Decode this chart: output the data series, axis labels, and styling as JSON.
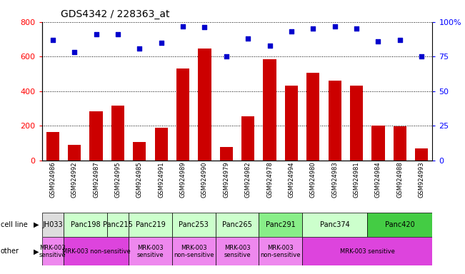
{
  "title": "GDS4342 / 228363_at",
  "gsm_labels": [
    "GSM924986",
    "GSM924992",
    "GSM924987",
    "GSM924995",
    "GSM924985",
    "GSM924991",
    "GSM924989",
    "GSM924990",
    "GSM924979",
    "GSM924982",
    "GSM924978",
    "GSM924994",
    "GSM924980",
    "GSM924983",
    "GSM924981",
    "GSM924984",
    "GSM924988",
    "GSM924993"
  ],
  "counts": [
    165,
    90,
    285,
    315,
    105,
    190,
    530,
    645,
    75,
    255,
    585,
    430,
    505,
    460,
    430,
    200,
    195,
    70
  ],
  "percentiles": [
    87,
    78,
    91,
    91,
    81,
    85,
    97,
    96,
    75,
    88,
    83,
    93,
    95,
    97,
    95,
    86,
    87,
    75
  ],
  "ylim_left": [
    0,
    800
  ],
  "ylim_right": [
    0,
    100
  ],
  "yticks_left": [
    0,
    200,
    400,
    600,
    800
  ],
  "yticks_right": [
    0,
    25,
    50,
    75,
    100
  ],
  "bar_color": "#cc0000",
  "scatter_color": "#0000cc",
  "cell_lines": [
    {
      "label": "JH033",
      "start": 0,
      "end": 1,
      "color": "#dddddd"
    },
    {
      "label": "Panc198",
      "start": 1,
      "end": 3,
      "color": "#ccffcc"
    },
    {
      "label": "Panc215",
      "start": 3,
      "end": 4,
      "color": "#ccffcc"
    },
    {
      "label": "Panc219",
      "start": 4,
      "end": 6,
      "color": "#ccffcc"
    },
    {
      "label": "Panc253",
      "start": 6,
      "end": 8,
      "color": "#ccffcc"
    },
    {
      "label": "Panc265",
      "start": 8,
      "end": 10,
      "color": "#ccffcc"
    },
    {
      "label": "Panc291",
      "start": 10,
      "end": 12,
      "color": "#88ee88"
    },
    {
      "label": "Panc374",
      "start": 12,
      "end": 15,
      "color": "#ccffcc"
    },
    {
      "label": "Panc420",
      "start": 15,
      "end": 18,
      "color": "#44cc44"
    }
  ],
  "other_rows": [
    {
      "label": "MRK-003\nsensitive",
      "start": 0,
      "end": 1,
      "color": "#ee88ee"
    },
    {
      "label": "MRK-003 non-sensitive",
      "start": 1,
      "end": 4,
      "color": "#dd44dd"
    },
    {
      "label": "MRK-003\nsensitive",
      "start": 4,
      "end": 6,
      "color": "#ee88ee"
    },
    {
      "label": "MRK-003\nnon-sensitive",
      "start": 6,
      "end": 8,
      "color": "#ee88ee"
    },
    {
      "label": "MRK-003\nsensitive",
      "start": 8,
      "end": 10,
      "color": "#ee88ee"
    },
    {
      "label": "MRK-003\nnon-sensitive",
      "start": 10,
      "end": 12,
      "color": "#ee88ee"
    },
    {
      "label": "MRK-003 sensitive",
      "start": 12,
      "end": 18,
      "color": "#dd44dd"
    }
  ],
  "bg_color": "#ffffff"
}
